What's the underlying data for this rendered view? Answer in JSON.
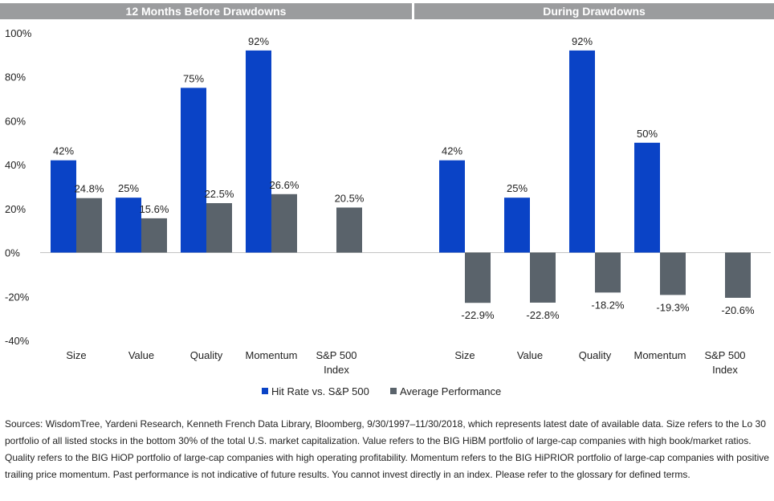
{
  "chart_data": {
    "type": "bar",
    "panels": [
      {
        "title": "12 Months Before Drawdowns",
        "categories": [
          [
            "Size"
          ],
          [
            "Value"
          ],
          [
            "Quality"
          ],
          [
            "Momentum"
          ],
          [
            "S&P 500",
            "Index"
          ]
        ],
        "series": [
          {
            "name": "Hit Rate vs. S&P 500",
            "values": [
              42,
              25,
              75,
              92,
              null
            ],
            "labels": [
              "42%",
              "25%",
              "75%",
              "92%",
              ""
            ]
          },
          {
            "name": "Average Performance",
            "values": [
              24.8,
              15.6,
              22.5,
              26.6,
              20.5
            ],
            "labels": [
              "24.8%",
              "15.6%",
              "22.5%",
              "26.6%",
              "20.5%"
            ]
          }
        ]
      },
      {
        "title": "During Drawdowns",
        "categories": [
          [
            "Size"
          ],
          [
            "Value"
          ],
          [
            "Quality"
          ],
          [
            "Momentum"
          ],
          [
            "S&P 500",
            "Index"
          ]
        ],
        "series": [
          {
            "name": "Hit Rate vs. S&P 500",
            "values": [
              42,
              25,
              92,
              50,
              null
            ],
            "labels": [
              "42%",
              "25%",
              "92%",
              "50%",
              ""
            ]
          },
          {
            "name": "Average Performance",
            "values": [
              -22.9,
              -22.8,
              -18.2,
              -19.3,
              -20.6
            ],
            "labels": [
              "-22.9%",
              "-22.8%",
              "-18.2%",
              "-19.3%",
              "-20.6%"
            ]
          }
        ]
      }
    ],
    "ylim": [
      -40,
      100
    ],
    "yticks": [
      100,
      80,
      60,
      40,
      20,
      0,
      -20,
      -40
    ],
    "ytick_labels": [
      "100%",
      "80%",
      "60%",
      "40%",
      "20%",
      "0%",
      "-20%",
      "-40%"
    ],
    "grid": false,
    "legend_position": "bottom-center",
    "colors": {
      "hit_rate": "#0a43c6",
      "avg_perf": "#5a636b",
      "header_bg": "#9b9c9e",
      "axis": "#bfbfbf"
    }
  },
  "notes": "Sources: WisdomTree, Yardeni Research, Kenneth French Data Library, Bloomberg, 9/30/1997–11/30/2018, which represents latest date of available data. Size refers to the Lo 30 portfolio of all listed stocks in the bottom 30% of the total U.S. market capitalization. Value refers to the BIG HiBM portfolio of large-cap companies with high book/market ratios. Quality refers to the BIG HiOP portfolio of large-cap companies with high operating profitability. Momentum refers to the BIG HiPRIOR portfolio of large-cap companies with positive trailing price momentum. Past performance is not indicative of future results. You cannot invest directly in an index. Please refer to the glossary for defined terms."
}
